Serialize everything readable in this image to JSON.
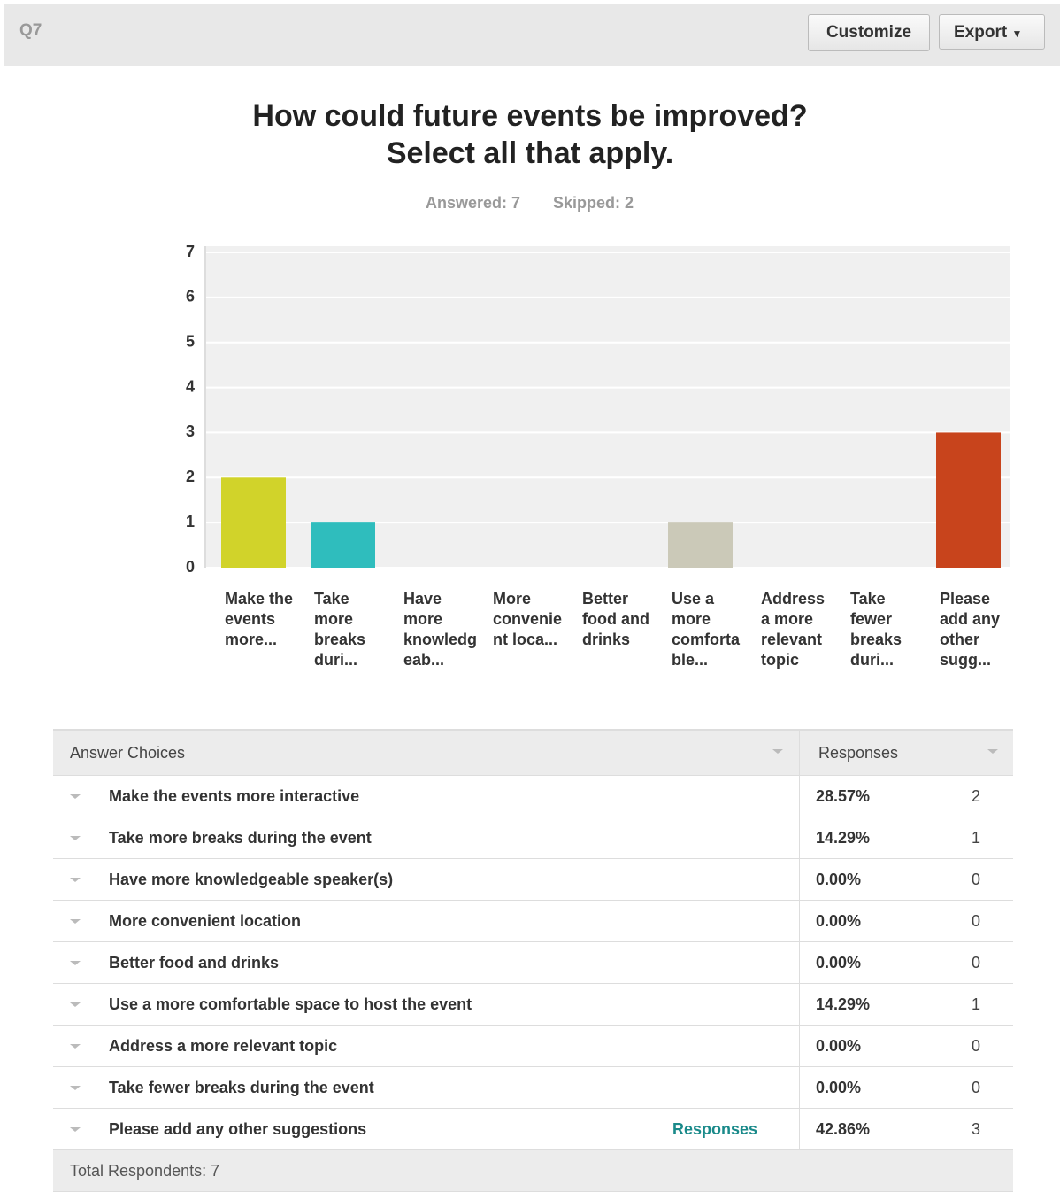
{
  "header": {
    "question": "Q7",
    "buttons": [
      "Customize",
      "Export"
    ]
  },
  "chart_data": {
    "type": "bar",
    "title": [
      "How could future events be improved?",
      "Select all that apply."
    ],
    "stats": [
      "Answered: 7",
      "Skipped: 2"
    ],
    "categories": [
      "Make the events more...",
      "Take more breaks duri...",
      "Have more knowledgeab...",
      "More convenient loca...",
      "Better food and drinks",
      "Use a more comfortable...",
      "Address a more relevant topic",
      "Take fewer breaks duri...",
      "Please add any other sugg..."
    ],
    "values": [
      2,
      1,
      0,
      0,
      0,
      1,
      0,
      0,
      3
    ],
    "colors": [
      "#d1d32a",
      "#2fbdbd",
      "#7a8a99",
      "#a7c4d8",
      "#93b36b",
      "#cbc9b8",
      "#e0a030",
      "#8b6ba8",
      "#c8441c"
    ],
    "ylim": [
      0,
      7
    ],
    "yticks": [
      0,
      1,
      2,
      3,
      4,
      5,
      6,
      7
    ],
    "grid": true
  },
  "table": {
    "columns": [
      "Answer Choices",
      "Responses"
    ],
    "rows": [
      {
        "choice": "Make the events more interactive",
        "percent": "28.57%",
        "count": 2
      },
      {
        "choice": "Take more breaks during the event",
        "percent": "14.29%",
        "count": 1
      },
      {
        "choice": "Have more knowledgeable speaker(s)",
        "percent": "0.00%",
        "count": 0
      },
      {
        "choice": "More convenient location",
        "percent": "0.00%",
        "count": 0
      },
      {
        "choice": "Better food and drinks",
        "percent": "0.00%",
        "count": 0
      },
      {
        "choice": "Use a more comfortable space to host the event",
        "percent": "14.29%",
        "count": 1
      },
      {
        "choice": "Address a more relevant topic",
        "percent": "0.00%",
        "count": 0
      },
      {
        "choice": "Take fewer breaks during the event",
        "percent": "0.00%",
        "count": 0
      },
      {
        "choice": "Please add any other suggestions",
        "link": "Responses",
        "percent": "42.86%",
        "count": 3
      }
    ],
    "footer": "Total Respondents: 7"
  }
}
